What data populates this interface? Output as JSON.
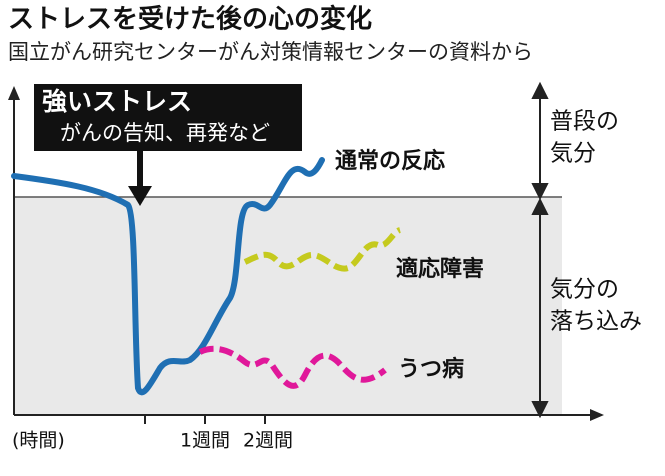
{
  "title": "ストレスを受けた後の心の変化",
  "subtitle": "国立がん研究センターがん対策情報センターの資料から",
  "callout": {
    "lines": [
      "強いストレス",
      "がんの告知、再発など"
    ]
  },
  "curves": [
    {
      "label": "通常の反応"
    },
    {
      "label": "適応障害"
    },
    {
      "label": "うつ病"
    }
  ],
  "zones": [
    {
      "lines": [
        "普段の",
        "気分"
      ]
    },
    {
      "lines": [
        "気分の",
        "落ち込み"
      ]
    }
  ],
  "x_labels": [
    "(時間)",
    "1週間",
    "2週間"
  ]
}
